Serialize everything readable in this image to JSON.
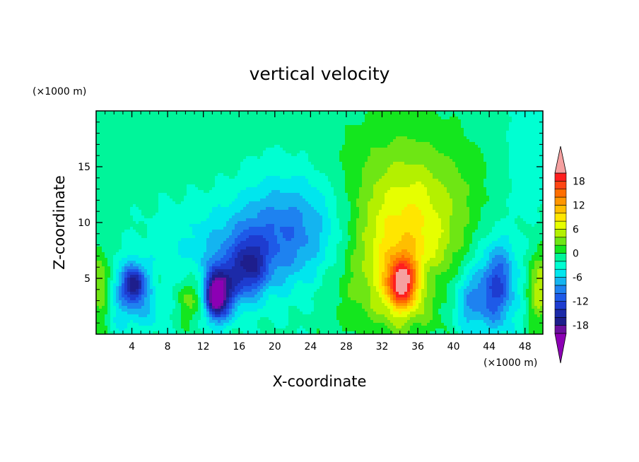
{
  "chart_data": {
    "type": "heatmap",
    "title": "vertical velocity",
    "xlabel": "X-coordinate",
    "ylabel": "Z-coordinate",
    "x_unit": "(×1000 m)",
    "y_unit": "(×1000 m)",
    "xlim": [
      0,
      50
    ],
    "ylim": [
      0,
      20
    ],
    "x_ticks": [
      4,
      8,
      12,
      16,
      20,
      24,
      28,
      32,
      36,
      40,
      44,
      48
    ],
    "y_ticks": [
      5,
      10,
      15
    ],
    "colorbar": {
      "levels": [
        -20,
        -18,
        -16,
        -14,
        -12,
        -10,
        -8,
        -6,
        -4,
        -2,
        0,
        2,
        4,
        6,
        8,
        10,
        12,
        14,
        16,
        18,
        20
      ],
      "tick_labels": [
        18,
        12,
        6,
        0,
        -6,
        -12,
        -18
      ],
      "colors": [
        "#6a0f9e",
        "#1e1e8c",
        "#1c2aa8",
        "#1e3cd0",
        "#1e5ae8",
        "#1e82f0",
        "#14b4f0",
        "#00e6ee",
        "#00ffd2",
        "#00f59a",
        "#14e61e",
        "#6ee614",
        "#b4f000",
        "#e6ff00",
        "#ffe600",
        "#ffbe00",
        "#ff9600",
        "#ff6e00",
        "#ff4614",
        "#ff1e1e"
      ],
      "extend_low_color": "#8c00b4",
      "extend_high_color": "#f5a0a0"
    },
    "features": [
      {
        "x": 34.2,
        "z": 4.5,
        "value": 16,
        "sx": 1.2,
        "sz": 1.6
      },
      {
        "x": 34.0,
        "z": 6.5,
        "value": 8,
        "sx": 4.0,
        "sz": 4.5
      },
      {
        "x": 36.0,
        "z": 11.0,
        "value": 4,
        "sx": 6.0,
        "sz": 4.5
      },
      {
        "x": 34.0,
        "z": 15.0,
        "value": 2,
        "sx": 6.0,
        "sz": 5.0
      },
      {
        "x": 37.5,
        "z": 5.0,
        "value": -3,
        "sx": 0.9,
        "sz": 1.3
      },
      {
        "x": 0.4,
        "z": 4.0,
        "value": 8,
        "sx": 1.0,
        "sz": 2.5
      },
      {
        "x": 49.6,
        "z": 4.0,
        "value": 7,
        "sx": 1.0,
        "sz": 2.5
      },
      {
        "x": 10.5,
        "z": 3.2,
        "value": 5,
        "sx": 1.6,
        "sz": 1.6
      },
      {
        "x": 6.8,
        "z": 4.6,
        "value": 3,
        "sx": 0.6,
        "sz": 1.2
      },
      {
        "x": 4.2,
        "z": 4.5,
        "value": -11,
        "sx": 0.8,
        "sz": 1.1
      },
      {
        "x": 4.0,
        "z": 3.5,
        "value": -6,
        "sx": 3.0,
        "sz": 2.2
      },
      {
        "x": 13.3,
        "z": 3.3,
        "value": -16,
        "sx": 0.8,
        "sz": 1.4
      },
      {
        "x": 14.3,
        "z": 4.0,
        "value": -10,
        "sx": 1.3,
        "sz": 1.8
      },
      {
        "x": 17.2,
        "z": 6.0,
        "value": -9,
        "sx": 1.3,
        "sz": 1.8
      },
      {
        "x": 18.0,
        "z": 7.5,
        "value": -6,
        "sx": 6.0,
        "sz": 3.0
      },
      {
        "x": 22.0,
        "z": 10.5,
        "value": -5,
        "sx": 5.0,
        "sz": 3.2
      },
      {
        "x": 42.0,
        "z": 3.0,
        "value": -6,
        "sx": 1.6,
        "sz": 2.0
      },
      {
        "x": 45.0,
        "z": 4.5,
        "value": -8,
        "sx": 1.2,
        "sz": 2.5
      },
      {
        "x": 44.5,
        "z": 5.0,
        "value": -3,
        "sx": 3.0,
        "sz": 4.0
      },
      {
        "x": 10.0,
        "z": 19.0,
        "value": 1,
        "sx": 2.5,
        "sz": 3.0
      },
      {
        "x": 1.0,
        "z": 18.0,
        "value": 1,
        "sx": 1.5,
        "sz": 3.0
      },
      {
        "x": 48.0,
        "z": 16.0,
        "value": -2,
        "sx": 2.0,
        "sz": 4.0
      },
      {
        "x": 15.0,
        "z": 12.0,
        "value": 1,
        "sx": 3.0,
        "sz": 3.0
      },
      {
        "x": 27.0,
        "z": 4.0,
        "value": 1,
        "sx": 3.0,
        "sz": 3.0
      }
    ],
    "background_value": -1.5
  }
}
